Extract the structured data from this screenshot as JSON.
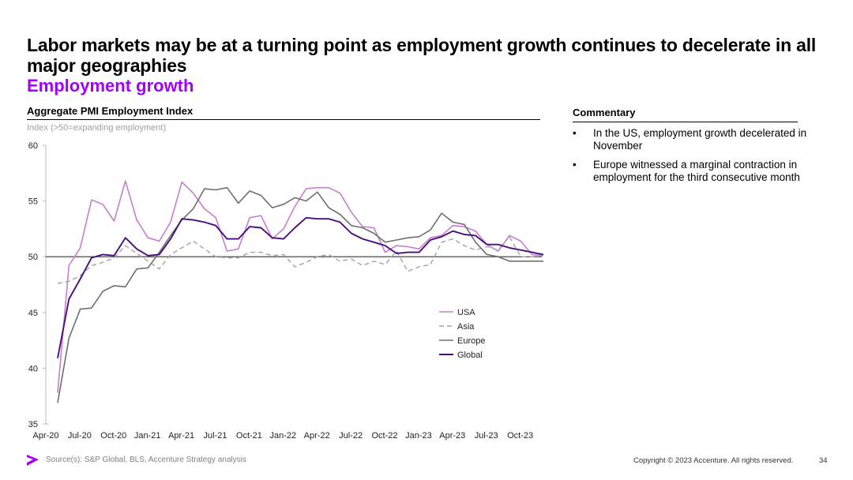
{
  "title": "Labor markets may be at a turning point as employment growth continues to decelerate in all major geographies",
  "subtitle": "Employment growth",
  "chart_heading": "Aggregate PMI Employment Index",
  "chart_note": "Index (>50=expanding employment)",
  "commentary": {
    "heading": "Commentary",
    "bullet_char": "•",
    "items": [
      "In the US, employment growth decelerated in November",
      "Europe witnessed a marginal contraction in employment for the third consecutive month"
    ]
  },
  "footer": {
    "source": "Source(s): S&P Global, BLS, Accenture Strategy analysis",
    "copyright": "Copyright © 2023 Accenture. All rights reserved.",
    "page": "34"
  },
  "colors": {
    "accent": "#a100ff",
    "usa": "#c77dd1",
    "asia": "#a3a3a3",
    "europe": "#6f6f6f",
    "global": "#4b0f7a"
  },
  "chart_data": {
    "type": "line",
    "title": "Aggregate PMI Employment Index",
    "ylabel": "Index (>50=expanding employment)",
    "xlabel": "",
    "ylim": [
      35,
      60
    ],
    "yticks": [
      35,
      40,
      45,
      50,
      55,
      60
    ],
    "reference_line": 50,
    "x": [
      "Apr-20",
      "May-20",
      "Jun-20",
      "Jul-20",
      "Aug-20",
      "Sep-20",
      "Oct-20",
      "Nov-20",
      "Dec-20",
      "Jan-21",
      "Feb-21",
      "Mar-21",
      "Apr-21",
      "May-21",
      "Jun-21",
      "Jul-21",
      "Aug-21",
      "Sep-21",
      "Oct-21",
      "Nov-21",
      "Dec-21",
      "Jan-22",
      "Feb-22",
      "Mar-22",
      "Apr-22",
      "May-22",
      "Jun-22",
      "Jul-22",
      "Aug-22",
      "Sep-22",
      "Oct-22",
      "Nov-22",
      "Dec-22",
      "Jan-23",
      "Feb-23",
      "Mar-23",
      "Apr-23",
      "May-23",
      "Jun-23",
      "Jul-23",
      "Aug-23",
      "Sep-23",
      "Oct-23",
      "Nov-23"
    ],
    "xtick_labels": [
      "Apr-20",
      "Jul-20",
      "Oct-20",
      "Jan-21",
      "Apr-21",
      "Jul-21",
      "Oct-21",
      "Jan-22",
      "Apr-22",
      "Jul-22",
      "Oct-22",
      "Jan-23",
      "Apr-23",
      "Jul-23",
      "Oct-23"
    ],
    "legend_position": "lower-right",
    "series": [
      {
        "name": "USA",
        "style": "solid",
        "values": [
          37.8,
          49.2,
          50.8,
          55.1,
          54.7,
          53.2,
          56.8,
          53.3,
          51.7,
          51.4,
          53.1,
          56.7,
          55.7,
          54.3,
          53.5,
          50.5,
          50.7,
          53.5,
          53.7,
          51.6,
          52.5,
          54.5,
          56.1,
          56.2,
          56.2,
          55.7,
          54.0,
          52.7,
          52.6,
          50.4,
          51.0,
          50.9,
          50.7,
          51.7,
          51.9,
          52.8,
          52.7,
          52.3,
          51.1,
          50.5,
          51.9,
          51.4,
          50.2,
          50.1
        ]
      },
      {
        "name": "Asia",
        "style": "dashed",
        "values": [
          47.6,
          47.8,
          48.3,
          49.2,
          49.5,
          49.9,
          51.0,
          50.3,
          49.6,
          48.9,
          50.2,
          50.8,
          51.4,
          50.7,
          50.0,
          49.9,
          49.9,
          50.4,
          50.4,
          50.1,
          50.2,
          49.1,
          49.5,
          50.0,
          50.2,
          49.6,
          49.8,
          49.2,
          49.6,
          49.3,
          50.5,
          48.7,
          49.1,
          49.3,
          51.3,
          51.6,
          51.0,
          50.6,
          50.9,
          50.6,
          51.8,
          50.0,
          50.0,
          50.1
        ]
      },
      {
        "name": "Europe",
        "style": "solid",
        "values": [
          36.9,
          42.7,
          45.3,
          45.4,
          46.9,
          47.4,
          47.3,
          48.9,
          49.0,
          50.4,
          51.9,
          53.3,
          54.3,
          56.1,
          56.0,
          56.2,
          54.8,
          55.9,
          55.5,
          54.4,
          54.7,
          55.3,
          55.0,
          55.8,
          54.4,
          53.8,
          52.8,
          52.6,
          52.1,
          51.3,
          51.5,
          51.7,
          51.8,
          52.4,
          53.9,
          53.1,
          52.9,
          51.3,
          50.2,
          50.0,
          49.6,
          49.6,
          49.6,
          49.6
        ]
      },
      {
        "name": "Global",
        "style": "solid",
        "values": [
          40.9,
          46.2,
          48.0,
          49.9,
          50.2,
          50.1,
          51.7,
          50.7,
          50.1,
          50.2,
          51.6,
          53.4,
          53.3,
          53.1,
          52.8,
          51.6,
          51.6,
          52.7,
          52.6,
          51.7,
          51.6,
          52.6,
          53.5,
          53.4,
          53.4,
          53.1,
          52.1,
          51.6,
          51.3,
          51.0,
          50.3,
          50.4,
          50.4,
          51.5,
          51.8,
          52.3,
          52.0,
          51.9,
          51.1,
          51.1,
          50.8,
          50.6,
          50.4,
          50.2
        ]
      }
    ]
  }
}
